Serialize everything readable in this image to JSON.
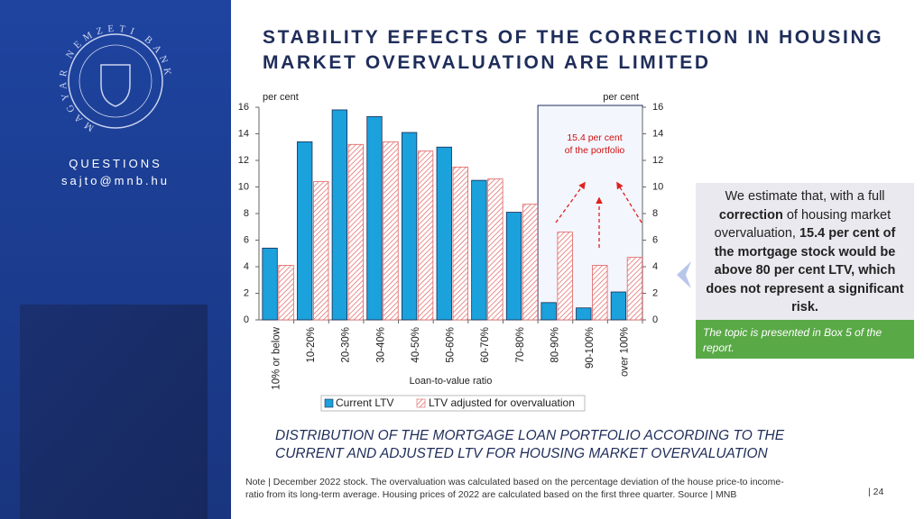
{
  "sidebar": {
    "logo_text": "MAGYAR NEMZETI BANK",
    "questions": "QUESTIONS",
    "email": "sajto@mnb.hu"
  },
  "title": "STABILITY EFFECTS OF THE CORRECTION IN HOUSING MARKET OVERVALUATION ARE LIMITED",
  "chart_data": {
    "type": "bar",
    "title": "DISTRIBUTION OF THE MORTGAGE LOAN PORTFOLIO ACCORDING TO THE CURRENT AND ADJUSTED LTV FOR HOUSING MARKET OVERVALUATION",
    "xlabel": "Loan-to-value ratio",
    "ylabel": "per cent",
    "y2label": "per cent",
    "annotation": "15.4 per cent of the portfolio",
    "categories": [
      "10% or below",
      "10-20%",
      "20-30%",
      "30-40%",
      "40-50%",
      "50-60%",
      "60-70%",
      "70-80%",
      "80-90%",
      "90-100%",
      "over 100%"
    ],
    "series": [
      {
        "name": "Current LTV",
        "color": "#1ba1dc",
        "values": [
          5.4,
          13.4,
          15.8,
          15.3,
          14.1,
          13.0,
          10.5,
          8.1,
          1.3,
          0.9,
          2.1
        ]
      },
      {
        "name": "LTV adjusted for overvaluation",
        "color": "#e06060",
        "values": [
          4.1,
          10.4,
          13.2,
          13.4,
          12.7,
          11.5,
          10.6,
          8.7,
          6.6,
          4.1,
          4.7
        ]
      }
    ],
    "ylim": [
      0,
      16
    ],
    "yticks": [
      0,
      2,
      4,
      6,
      8,
      10,
      12,
      14,
      16
    ],
    "y2lim": [
      0,
      16
    ],
    "y2ticks": [
      0,
      2,
      4,
      6,
      8,
      10,
      12,
      14,
      16
    ]
  },
  "callout": {
    "segments": [
      {
        "text": "We estimate that, with a full ",
        "bold": false
      },
      {
        "text": "correction",
        "bold": true
      },
      {
        "text": " of housing market overvaluation, ",
        "bold": false
      },
      {
        "text": "15.4 per cent of the mortgage stock would be above 80 per cent LTV, which does not represent a significant risk.",
        "bold": true
      }
    ]
  },
  "footnote_box": "The topic is presented in Box 5 of the report.",
  "note": "Note | December 2022 stock. The overvaluation was calculated based on the percentage deviation of the house price-to income-ratio from its long-term average. Housing prices of 2022 are calculated based on the first three quarter. Source | MNB",
  "page_number": "| 24"
}
